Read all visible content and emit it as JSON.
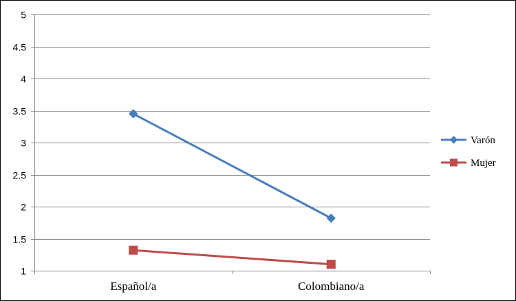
{
  "chart_data": {
    "type": "line",
    "title": "",
    "xlabel": "",
    "ylabel": "",
    "categories": [
      "Español/a",
      "Colombiano/a"
    ],
    "series": [
      {
        "name": "Varón",
        "values": [
          3.45,
          1.82
        ],
        "color": "#4a7ebb",
        "marker": "diamond"
      },
      {
        "name": "Mujer",
        "values": [
          1.32,
          1.1
        ],
        "color": "#be4b48",
        "marker": "square"
      }
    ],
    "ylim": [
      1,
      5
    ],
    "yticks": [
      "1",
      "1.5",
      "2",
      "2.5",
      "3",
      "3.5",
      "4",
      "4.5",
      "5"
    ],
    "grid": true,
    "legend_position": "right",
    "gridline_color": "#868686",
    "axis_color": "#868686"
  }
}
